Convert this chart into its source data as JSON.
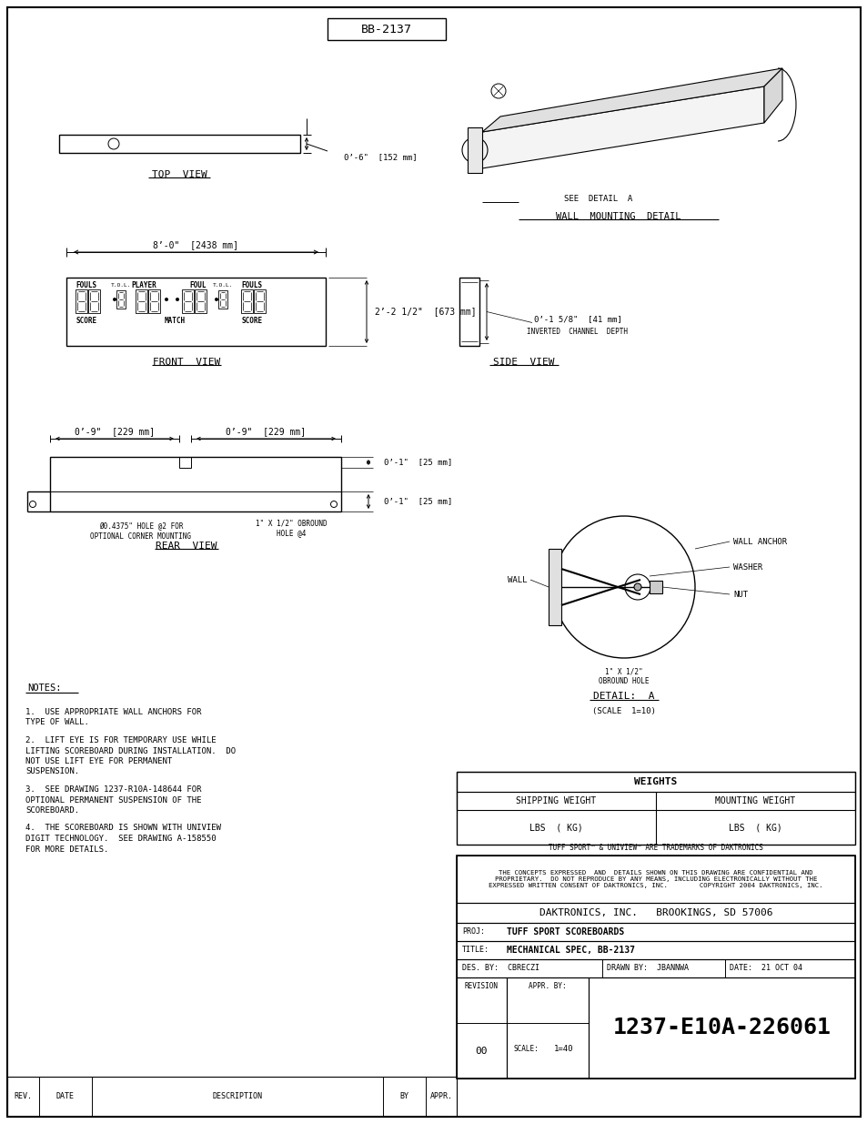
{
  "bg_color": "#ffffff",
  "text_color": "#000000",
  "title_box_text": "BB-2137",
  "top_view_label": "TOP  VIEW",
  "top_view_dim": "0’-6\"  [152 mm]",
  "front_view_label": "FRONT  VIEW",
  "front_view_dim1": "8’-0\"  [2438 mm]",
  "front_view_dim2": "2’-2 1/2\"  [673 mm]",
  "front_fouls_left": "FOULS",
  "front_tol_left": "T.O.L.",
  "front_player": "PLAYER",
  "front_foul": "FOUL",
  "front_tol_right": "T.O.L.",
  "front_fouls_right": "FOULS",
  "front_score_left": "SCORE",
  "front_match": "MATCH",
  "front_score_right": "SCORE",
  "side_view_label": "SIDE  VIEW",
  "side_dim1": "0’-1 5/8\"  [41 mm]",
  "side_dim1_label": "INVERTED  CHANNEL  DEPTH",
  "wall_mount_label": "WALL  MOUNTING  DETAIL",
  "wall_mount_sublabel": "SEE  DETAIL  A",
  "rear_view_label": "REAR  VIEW",
  "rear_dim1": "0’-9\"  [229 mm]",
  "rear_dim2": "0’-9\"  [229 mm]",
  "rear_dim3": "0’-1\"  [25 mm]",
  "rear_dim4": "0’-1\"  [25 mm]",
  "rear_hole1": "Ø0.4375\" HOLE @2 FOR\nOPTIONAL CORNER MOUNTING",
  "rear_hole2": "1\" X 1/2\" OBROUND\nHOLE @4",
  "detail_a_label": "DETAIL:  A",
  "detail_a_scale": "(SCALE  1=10)",
  "detail_wall": "WALL",
  "detail_wall_anchor": "WALL ANCHOR",
  "detail_washer": "WASHER",
  "detail_nut": "NUT",
  "detail_obround": "1\" X 1/2\"\nOBROUND HOLE",
  "notes_label": "NOTES:",
  "note1": "1.  USE APPROPRIATE WALL ANCHORS FOR\nTYPE OF WALL.",
  "note2": "2.  LIFT EYE IS FOR TEMPORARY USE WHILE\nLIFTING SCOREBOARD DURING INSTALLATION.  DO\nNOT USE LIFT EYE FOR PERMANENT\nSUSPENSION.",
  "note3": "3.  SEE DRAWING 1237-R10A-148644 FOR\nOPTIONAL PERMANENT SUSPENSION OF THE\nSCOREBOARD.",
  "note4": "4.  THE SCOREBOARD IS SHOWN WITH UNIVIEW\nDIGIT TECHNOLOGY.  SEE DRAWING A-158550\nFOR MORE DETAILS.",
  "weights_label": "WEIGHTS",
  "shipping_weight": "SHIPPING WEIGHT",
  "mounting_weight": "MOUNTING WEIGHT",
  "lbs_kg_left": "LBS  ( KG)",
  "lbs_kg_right": "LBS  ( KG)",
  "trademark_text": "TUFF SPORT™ & UNIVIEW™ ARE TRADEMARKS OF DAKTRONICS",
  "confidential_text": "THE CONCEPTS EXPRESSED  AND  DETAILS SHOWN ON THIS DRAWING ARE CONFIDENTIAL AND\nPROPRIETARY.  DO NOT REPRODUCE BY ANY MEANS, INCLUDING ELECTRONICALLY WITHOUT THE\nEXPRESSED WRITTEN CONSENT OF DAKTRONICS, INC.        COPYRIGHT 2004 DAKTRONICS, INC.",
  "company": "DAKTRONICS, INC.   BROOKINGS, SD 57006",
  "proj_label": "PROJ:",
  "proj_value": "TUFF SPORT SCOREBOARDS",
  "title_label": "TITLE:",
  "title_value": "MECHANICAL SPEC, BB-2137",
  "des_label": "DES. BY:",
  "des_value": "CBRECZI",
  "drawn_label": "DRAWN BY:",
  "drawn_value": "JBANNWA",
  "date_label": "DATE:",
  "date_value": "21 OCT 04",
  "revision_label": "REVISION",
  "revision_value": "00",
  "appr_label": "APPR. BY:",
  "scale_label": "SCALE:",
  "scale_value": "1=40",
  "drawing_number": "1237-E10A-226061",
  "rev_label": "REV.",
  "date_col_label": "DATE",
  "desc_col_label": "DESCRIPTION",
  "by_col_label": "BY",
  "appr_col_label": "APPR."
}
